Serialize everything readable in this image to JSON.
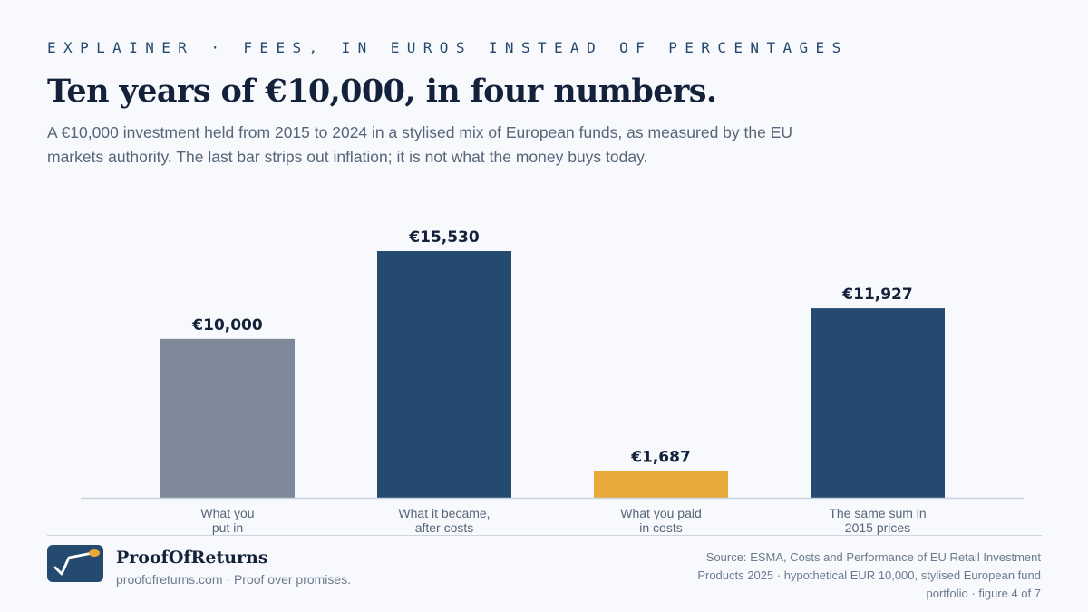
{
  "header": {
    "kicker": "EXPLAINER · FEES, IN EUROS INSTEAD OF PERCENTAGES",
    "title": "Ten years of €10,000, in four numbers.",
    "subtitle": "A €10,000 investment held from 2015 to 2024 in a stylised mix of European funds, as measured by the EU markets authority. The last bar strips out inflation; it is not what the money buys today."
  },
  "chart_data": {
    "type": "bar",
    "categories": [
      [
        "What you",
        "put in"
      ],
      [
        "What it became,",
        "after costs"
      ],
      [
        "What you paid",
        "in costs"
      ],
      [
        "The same sum in",
        "2015 prices"
      ]
    ],
    "values": [
      10000,
      15530,
      1687,
      11927
    ],
    "value_labels": [
      "€10,000",
      "€15,530",
      "€1,687",
      "€11,927"
    ],
    "bar_colors": [
      "#7d8899",
      "#254a70",
      "#e8a83c",
      "#254a70"
    ],
    "ylim": [
      0,
      15530
    ],
    "grid": false,
    "legend": "none"
  },
  "colors": {
    "label_text": "#14213a",
    "category_text": "#56657a",
    "baseline": "#cbd5e1",
    "logo_bg": "#254a70",
    "logo_accent": "#e8a83c"
  },
  "footer": {
    "brand_name": "ProofOfReturns",
    "tagline": "proofofreturns.com · Proof over promises.",
    "source": "Source: ESMA, Costs and Performance of EU Retail Investment Products 2025 · hypothetical EUR 10,000, stylised European fund portfolio · figure 4 of 7",
    "logo_icon": "chart-check-icon"
  }
}
